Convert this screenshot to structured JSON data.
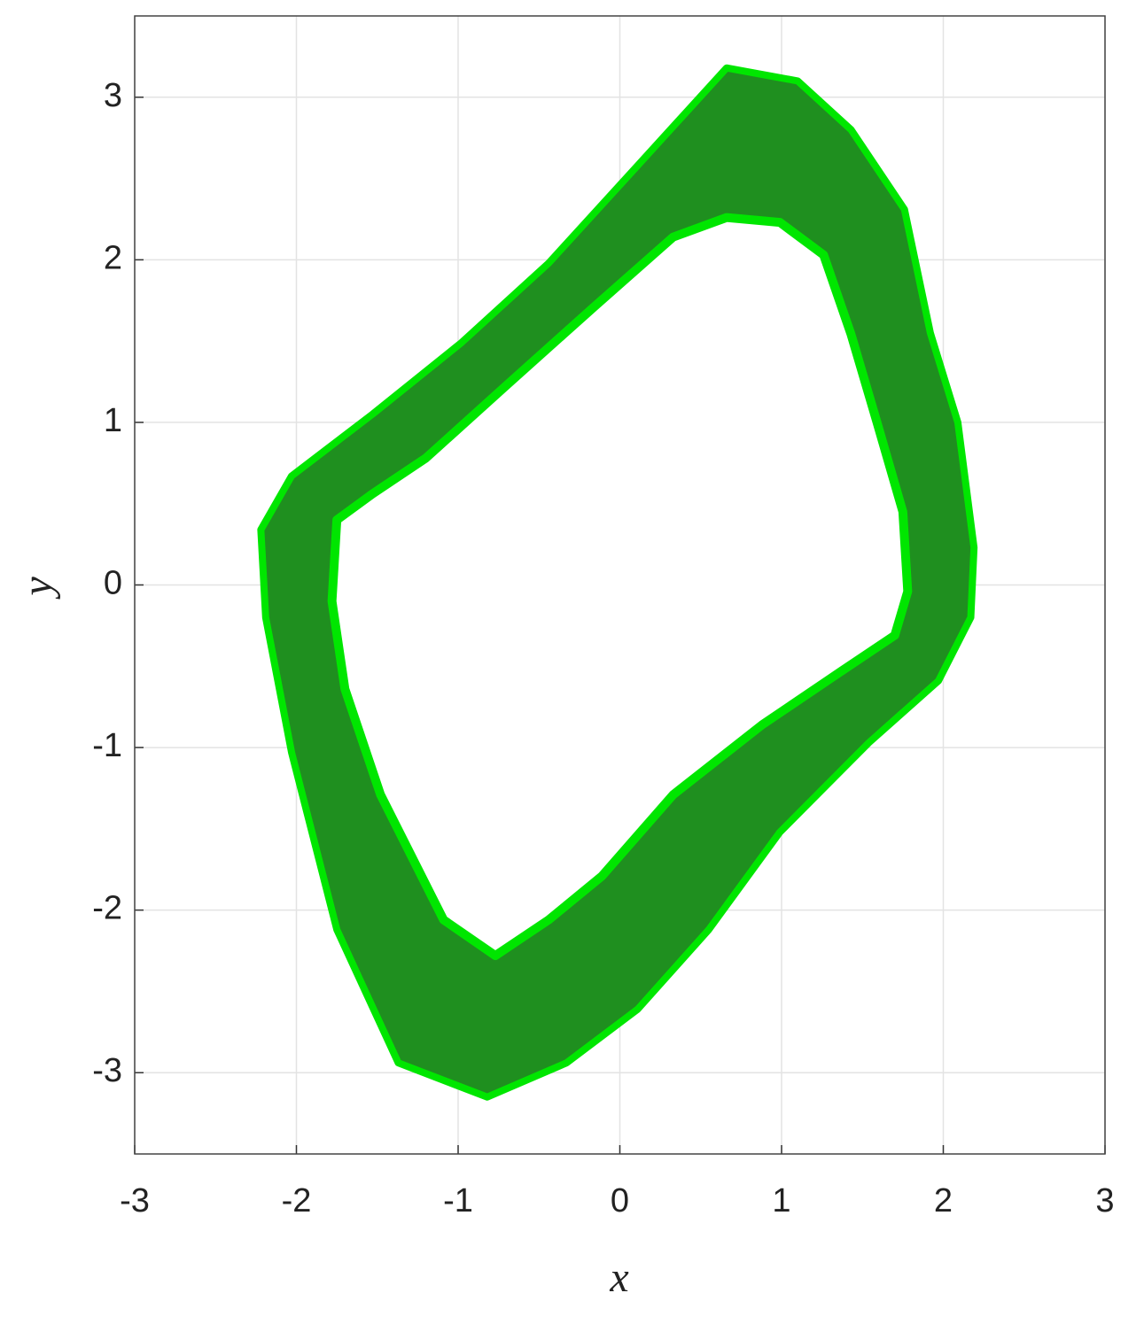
{
  "chart_data": {
    "type": "band",
    "xlabel": "x",
    "ylabel": "y",
    "xlim": [
      -3,
      3
    ],
    "ylim": [
      -3.5,
      3.5
    ],
    "xticks": [
      -3,
      -2,
      -1,
      0,
      1,
      2,
      3
    ],
    "yticks": [
      -3,
      -2,
      -1,
      0,
      1,
      2,
      3
    ],
    "grid": true,
    "series": [
      {
        "color": "#1f8f1f",
        "x": [
          0.66,
          1.1,
          1.43,
          1.76,
          1.92,
          2.09,
          2.19,
          2.17,
          1.97,
          1.54,
          0.99,
          0.55,
          0.11,
          -0.33,
          -0.82,
          -1.37,
          -1.75,
          -2.03,
          -2.19,
          -2.22,
          -2.03,
          -1.53,
          -0.98,
          -0.44,
          0.11
        ],
        "y": [
          3.18,
          3.1,
          2.8,
          2.31,
          1.55,
          1.0,
          0.23,
          -0.2,
          -0.59,
          -0.97,
          -1.52,
          -2.12,
          -2.61,
          -2.94,
          -3.15,
          -2.94,
          -2.12,
          -1.03,
          -0.2,
          0.34,
          0.67,
          1.05,
          1.49,
          1.98,
          2.58
        ]
      },
      {
        "color": "#00e600",
        "x": [
          0.66,
          0.99,
          1.26,
          1.43,
          1.59,
          1.75,
          1.78,
          1.7,
          1.37,
          0.88,
          0.33,
          -0.11,
          -0.44,
          -0.77,
          -1.09,
          -1.48,
          -1.7,
          -1.78,
          -1.75,
          -1.53,
          -1.2,
          -0.71,
          -0.16,
          0.33
        ],
        "y": [
          2.26,
          2.23,
          2.03,
          1.54,
          1.0,
          0.45,
          -0.04,
          -0.31,
          -0.53,
          -0.86,
          -1.29,
          -1.79,
          -2.06,
          -2.28,
          -2.06,
          -1.29,
          -0.64,
          -0.1,
          0.4,
          0.56,
          0.78,
          1.22,
          1.71,
          2.14
        ]
      }
    ]
  }
}
